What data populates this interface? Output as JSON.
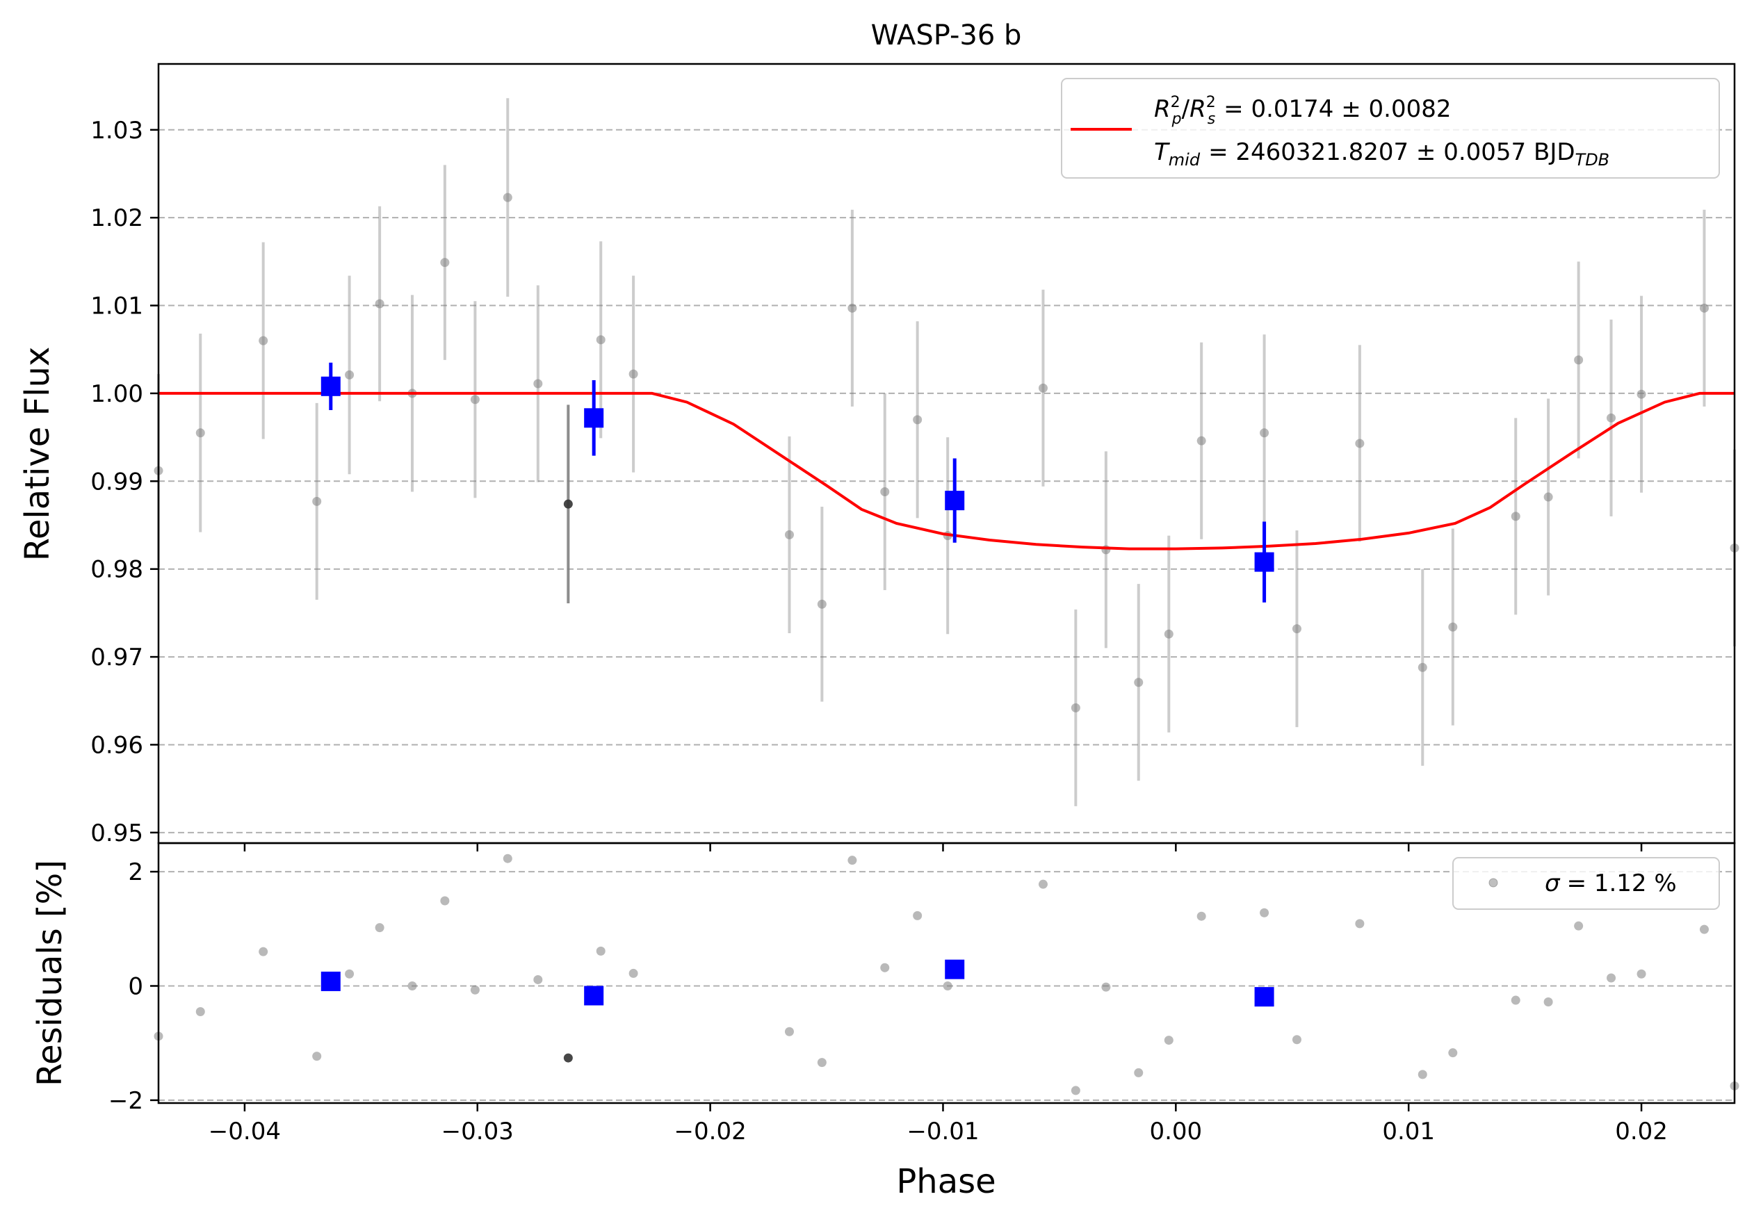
{
  "chart_data": {
    "type": "scatter",
    "title": "WASP-36 b",
    "xlabel": "Phase",
    "xlim": [
      -0.0437,
      0.024
    ],
    "xticks": [
      -0.04,
      -0.03,
      -0.02,
      -0.01,
      0.0,
      0.01,
      0.02
    ],
    "xtick_labels": [
      "−0.04",
      "−0.03",
      "−0.02",
      "−0.01",
      "0.00",
      "0.01",
      "0.02"
    ],
    "colors": {
      "raw": "#808080",
      "binned": "#0000ff",
      "model": "#ff0000",
      "grid": "#b0b0b0"
    },
    "main_panel": {
      "ylabel": "Relative Flux",
      "ylim": [
        0.9488,
        1.0375
      ],
      "yticks": [
        0.95,
        0.96,
        0.97,
        0.98,
        0.99,
        1.0,
        1.01,
        1.02,
        1.03
      ],
      "ytick_labels": [
        "0.95",
        "0.96",
        "0.97",
        "0.98",
        "0.99",
        "1.00",
        "1.01",
        "1.02",
        "1.03"
      ],
      "grid": "horizontal dashed",
      "legend": {
        "placement": "top-right",
        "line1_prefix": "= 0.0174 ± 0.0082",
        "line2_value": "= 2460321.8207 ± 0.0057 BJD",
        "line2_sub": "TDB",
        "symbols": {
          "Rp": "R",
          "p": "p",
          "Rs": "R",
          "s": "s",
          "exp": "2",
          "T": "T",
          "mid": "mid"
        }
      },
      "raw_points": [
        {
          "x": -0.0437,
          "y": 0.9912,
          "err": 0.011
        },
        {
          "x": -0.0419,
          "y": 0.9955,
          "err": 0.0113
        },
        {
          "x": -0.0392,
          "y": 1.006,
          "err": 0.0112
        },
        {
          "x": -0.0369,
          "y": 0.9877,
          "err": 0.0112
        },
        {
          "x": -0.0355,
          "y": 1.0021,
          "err": 0.0113
        },
        {
          "x": -0.0342,
          "y": 1.0102,
          "err": 0.0111
        },
        {
          "x": -0.0328,
          "y": 1.0,
          "err": 0.0112
        },
        {
          "x": -0.0314,
          "y": 1.0149,
          "err": 0.0111
        },
        {
          "x": -0.0301,
          "y": 0.9993,
          "err": 0.0112
        },
        {
          "x": -0.0287,
          "y": 1.0223,
          "err": 0.0113
        },
        {
          "x": -0.0274,
          "y": 1.0011,
          "err": 0.0112
        },
        {
          "x": -0.0261,
          "y": 0.9874,
          "err": 0.0113,
          "dark": true
        },
        {
          "x": -0.0247,
          "y": 1.0061,
          "err": 0.0112
        },
        {
          "x": -0.0233,
          "y": 1.0022,
          "err": 0.0112
        },
        {
          "x": -0.0166,
          "y": 0.9839,
          "err": 0.0112
        },
        {
          "x": -0.0152,
          "y": 0.976,
          "err": 0.0111
        },
        {
          "x": -0.0139,
          "y": 1.0097,
          "err": 0.0112
        },
        {
          "x": -0.0125,
          "y": 0.9888,
          "err": 0.0112
        },
        {
          "x": -0.0111,
          "y": 0.997,
          "err": 0.0112
        },
        {
          "x": -0.0098,
          "y": 0.9838,
          "err": 0.0112
        },
        {
          "x": -0.0057,
          "y": 1.0006,
          "err": 0.0112
        },
        {
          "x": -0.0043,
          "y": 0.9642,
          "err": 0.0112
        },
        {
          "x": -0.003,
          "y": 0.9822,
          "err": 0.0112
        },
        {
          "x": -0.0016,
          "y": 0.9671,
          "err": 0.0112
        },
        {
          "x": -0.0003,
          "y": 0.9726,
          "err": 0.0112
        },
        {
          "x": 0.0011,
          "y": 0.9946,
          "err": 0.0112
        },
        {
          "x": 0.0038,
          "y": 0.9955,
          "err": 0.0112
        },
        {
          "x": 0.0052,
          "y": 0.9732,
          "err": 0.0112
        },
        {
          "x": 0.0079,
          "y": 0.9943,
          "err": 0.0112
        },
        {
          "x": 0.0106,
          "y": 0.9688,
          "err": 0.0112
        },
        {
          "x": 0.0119,
          "y": 0.9734,
          "err": 0.0112
        },
        {
          "x": 0.0146,
          "y": 0.986,
          "err": 0.0112
        },
        {
          "x": 0.016,
          "y": 0.9882,
          "err": 0.0112
        },
        {
          "x": 0.0173,
          "y": 1.0038,
          "err": 0.0112
        },
        {
          "x": 0.0187,
          "y": 0.9972,
          "err": 0.0112
        },
        {
          "x": 0.02,
          "y": 0.9999,
          "err": 0.0112
        },
        {
          "x": 0.0227,
          "y": 1.0097,
          "err": 0.0112
        },
        {
          "x": 0.024,
          "y": 0.9824,
          "err": 0.0112
        }
      ],
      "binned_points": [
        {
          "x": -0.0363,
          "y": 1.0008,
          "err": 0.0027
        },
        {
          "x": -0.025,
          "y": 0.9972,
          "err": 0.0043
        },
        {
          "x": -0.0095,
          "y": 0.9878,
          "err": 0.0048
        },
        {
          "x": 0.0038,
          "y": 0.9808,
          "err": 0.0046
        }
      ],
      "model": {
        "x": [
          -0.0437,
          -0.0225,
          -0.021,
          -0.019,
          -0.017,
          -0.015,
          -0.0135,
          -0.012,
          -0.01,
          -0.008,
          -0.006,
          -0.004,
          -0.002,
          0.0,
          0.002,
          0.004,
          0.006,
          0.008,
          0.01,
          0.012,
          0.0135,
          0.015,
          0.017,
          0.019,
          0.021,
          0.0225,
          0.024
        ],
        "y": [
          1.0,
          1.0,
          0.999,
          0.9965,
          0.993,
          0.9895,
          0.9868,
          0.9852,
          0.984,
          0.9833,
          0.9828,
          0.9825,
          0.9823,
          0.9823,
          0.9824,
          0.9826,
          0.9829,
          0.9834,
          0.9841,
          0.9852,
          0.987,
          0.9897,
          0.9932,
          0.9966,
          0.999,
          1.0,
          1.0
        ]
      }
    },
    "residual_panel": {
      "ylabel": "Residuals [%]",
      "ylim": [
        -2.05,
        2.5
      ],
      "yticks": [
        -2,
        0,
        2
      ],
      "ytick_labels": [
        "−2",
        "0",
        "2"
      ],
      "grid": "horizontal dashed",
      "legend": {
        "placement": "top-right",
        "label": "= 1.12 %",
        "sigma": "σ"
      },
      "raw_points": [
        {
          "x": -0.0437,
          "y": -0.88
        },
        {
          "x": -0.0419,
          "y": -0.45
        },
        {
          "x": -0.0392,
          "y": 0.6
        },
        {
          "x": -0.0369,
          "y": -1.23
        },
        {
          "x": -0.0355,
          "y": 0.21
        },
        {
          "x": -0.0342,
          "y": 1.02
        },
        {
          "x": -0.0328,
          "y": 0.0
        },
        {
          "x": -0.0314,
          "y": 1.49
        },
        {
          "x": -0.0301,
          "y": -0.07
        },
        {
          "x": -0.0287,
          "y": 2.23
        },
        {
          "x": -0.0274,
          "y": 0.11
        },
        {
          "x": -0.0261,
          "y": -1.26,
          "dark": true
        },
        {
          "x": -0.0247,
          "y": 0.61
        },
        {
          "x": -0.0233,
          "y": 0.22
        },
        {
          "x": -0.0166,
          "y": -0.8
        },
        {
          "x": -0.0152,
          "y": -1.34
        },
        {
          "x": -0.0139,
          "y": 2.2
        },
        {
          "x": -0.0125,
          "y": 0.32
        },
        {
          "x": -0.0111,
          "y": 1.23
        },
        {
          "x": -0.0098,
          "y": 0.0
        },
        {
          "x": -0.0057,
          "y": 1.78
        },
        {
          "x": -0.0043,
          "y": -1.83
        },
        {
          "x": -0.003,
          "y": -0.02
        },
        {
          "x": -0.0016,
          "y": -1.52
        },
        {
          "x": -0.0003,
          "y": -0.95
        },
        {
          "x": 0.0011,
          "y": 1.22
        },
        {
          "x": 0.0038,
          "y": 1.28
        },
        {
          "x": 0.0052,
          "y": -0.94
        },
        {
          "x": 0.0079,
          "y": 1.09
        },
        {
          "x": 0.0106,
          "y": -1.55
        },
        {
          "x": 0.0119,
          "y": -1.17
        },
        {
          "x": 0.0146,
          "y": -0.25
        },
        {
          "x": 0.016,
          "y": -0.28
        },
        {
          "x": 0.0173,
          "y": 1.05
        },
        {
          "x": 0.0187,
          "y": 0.14
        },
        {
          "x": 0.02,
          "y": 0.21
        },
        {
          "x": 0.0227,
          "y": 0.99
        },
        {
          "x": 0.024,
          "y": -1.75
        }
      ],
      "binned_points": [
        {
          "x": -0.0363,
          "y": 0.08
        },
        {
          "x": -0.025,
          "y": -0.17
        },
        {
          "x": -0.0095,
          "y": 0.29
        },
        {
          "x": 0.0038,
          "y": -0.19
        }
      ]
    }
  }
}
